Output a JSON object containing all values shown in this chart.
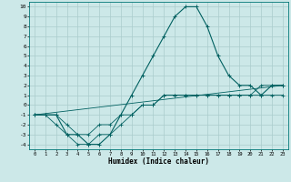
{
  "xlabel": "Humidex (Indice chaleur)",
  "ylabel": "",
  "bg_color": "#cce8e8",
  "line_color": "#006060",
  "grid_color": "#aacccc",
  "xlim": [
    -0.5,
    23.5
  ],
  "ylim": [
    -4.5,
    10.5
  ],
  "xticks": [
    0,
    1,
    2,
    3,
    4,
    5,
    6,
    7,
    8,
    9,
    10,
    11,
    12,
    13,
    14,
    15,
    16,
    17,
    18,
    19,
    20,
    21,
    22,
    23
  ],
  "yticks": [
    -4,
    -3,
    -2,
    -1,
    0,
    1,
    2,
    3,
    4,
    5,
    6,
    7,
    8,
    9,
    10
  ],
  "main_curve_x": [
    0,
    1,
    2,
    3,
    4,
    5,
    6,
    7,
    8,
    9,
    10,
    11,
    12,
    13,
    14,
    15,
    16,
    17,
    18,
    19,
    20,
    21,
    22,
    23
  ],
  "main_curve_y": [
    -1,
    -1,
    -1,
    -3,
    -3,
    -4,
    -4,
    -3,
    -1,
    1,
    3,
    5,
    7,
    9,
    10,
    10,
    8,
    5,
    3,
    2,
    2,
    1,
    2,
    2
  ],
  "line1_x": [
    0,
    1,
    2,
    3,
    4,
    5,
    6,
    7,
    8,
    9,
    10,
    11,
    12,
    13,
    14,
    15,
    16,
    17,
    18,
    19,
    20,
    21,
    22,
    23
  ],
  "line1_y": [
    -1,
    -1,
    -2,
    -3,
    -4,
    -4,
    -3,
    -3,
    -2,
    -1,
    0,
    0,
    1,
    1,
    1,
    1,
    1,
    1,
    1,
    1,
    1,
    1,
    1,
    1
  ],
  "line2_x": [
    0,
    1,
    2,
    3,
    4,
    5,
    6,
    7,
    8,
    9,
    10,
    11,
    12,
    13,
    14,
    15,
    16,
    17,
    18,
    19,
    20,
    21,
    22,
    23
  ],
  "line2_y": [
    -1,
    -1,
    -1,
    -2,
    -3,
    -3,
    -2,
    -2,
    -1,
    -1,
    0,
    0,
    1,
    1,
    1,
    1,
    1,
    1,
    1,
    1,
    1,
    2,
    2,
    2
  ],
  "line3_x": [
    0,
    23
  ],
  "line3_y": [
    -1,
    2
  ],
  "figsize": [
    3.2,
    2.0
  ],
  "dpi": 100
}
